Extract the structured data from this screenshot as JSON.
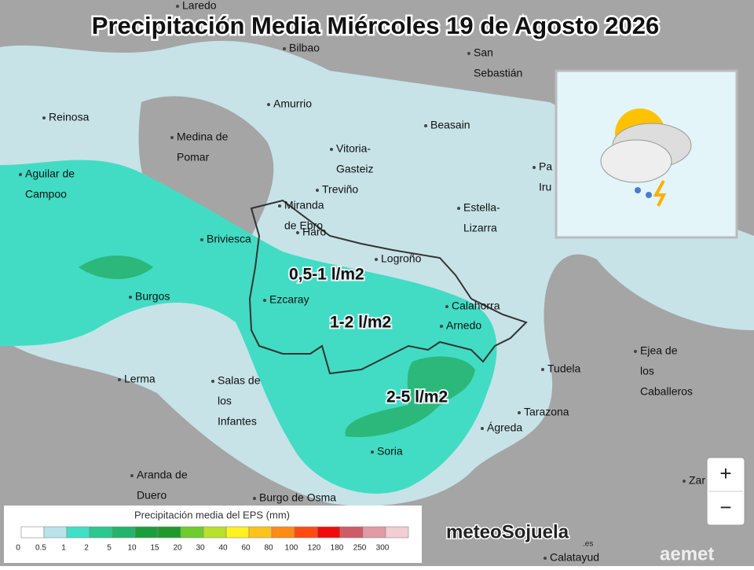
{
  "title": "Precipitación Media Miércoles 19 de Agosto 2026",
  "places": [
    [
      "Laredo"
    ],
    [
      "Bilbao"
    ],
    [
      "San",
      "Sebastián"
    ],
    [
      "Reinosa"
    ],
    [
      "Amurrio"
    ],
    [
      "Beasain"
    ],
    [
      "Medina de",
      "Pomar"
    ],
    [
      "Vitoria-",
      "Gasteiz"
    ],
    [
      "Aguilar de",
      "Campoo"
    ],
    [
      "Treviño"
    ],
    [
      "Miranda",
      "de Ebro"
    ],
    [
      "Haro"
    ],
    [
      "Estella-",
      "Lizarra"
    ],
    [
      "Pa",
      "Iru"
    ],
    [
      "Briviesca"
    ],
    [
      "Logroño"
    ],
    [
      "Calahorra"
    ],
    [
      "Ezcaray"
    ],
    [
      "Burgos"
    ],
    [
      "Arnedo"
    ],
    [
      "Ejea de",
      "los",
      "Caballeros"
    ],
    [
      "Tudela"
    ],
    [
      "Lerma"
    ],
    [
      "Salas de",
      "los",
      "Infantes"
    ],
    [
      "Tarazona"
    ],
    [
      "Ágreda"
    ],
    [
      "Soria"
    ],
    [
      "Aranda de",
      "Duero"
    ],
    [
      "Zar"
    ],
    [
      "Burgo de Osma"
    ],
    [
      "Calatayud"
    ]
  ],
  "annotations": [
    "0,5-1 l/m2",
    "1-2 l/m2",
    "2-5 l/m2"
  ],
  "legend": {
    "title": "Precipitación media del EPS (mm)",
    "labels": [
      "0",
      "0.5",
      "1",
      "2",
      "5",
      "10",
      "15",
      "20",
      "30",
      "40",
      "60",
      "80",
      "100",
      "120",
      "180",
      "250",
      "300"
    ],
    "colors": [
      "#ffffff",
      "#b9e3ea",
      "#3fe0c6",
      "#2bc88f",
      "#22b46c",
      "#1a9e3c",
      "#1f9a2a",
      "#6ccd2c",
      "#b8e12a",
      "#fff21e",
      "#ffc21a",
      "#ff8a14",
      "#ff4a10",
      "#f00c0c",
      "#cf5b66",
      "#e29aa4",
      "#f2cdd2"
    ]
  },
  "controls": [
    "+",
    "−"
  ],
  "logos": [
    "meteoSojuela",
    ".es",
    "aemet"
  ]
}
